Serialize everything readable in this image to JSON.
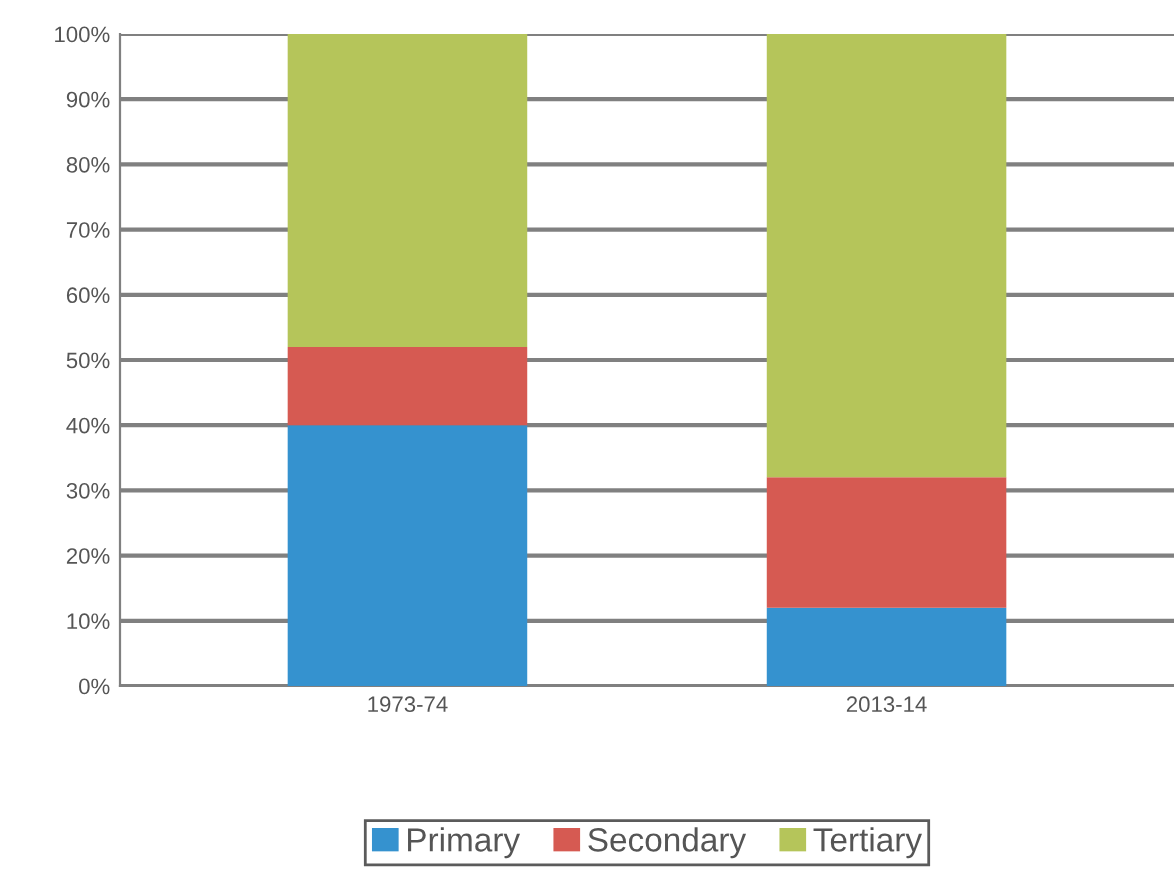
{
  "chart_data": {
    "type": "bar",
    "stacked": true,
    "categories": [
      "1973-74",
      "2013-14"
    ],
    "series": [
      {
        "name": "Primary",
        "color": "#3592cf",
        "values": [
          40,
          12
        ]
      },
      {
        "name": "Secondary",
        "color": "#d65a52",
        "values": [
          12,
          20
        ]
      },
      {
        "name": "Tertiary",
        "color": "#b5c55a",
        "values": [
          48,
          68
        ]
      }
    ],
    "ylim": [
      0,
      100
    ],
    "yticks": [
      {
        "value": 0,
        "label": "0%"
      },
      {
        "value": 10,
        "label": "10%"
      },
      {
        "value": 20,
        "label": "20%"
      },
      {
        "value": 30,
        "label": "30%"
      },
      {
        "value": 40,
        "label": "40%"
      },
      {
        "value": 50,
        "label": "50%"
      },
      {
        "value": 60,
        "label": "60%"
      },
      {
        "value": 70,
        "label": "70%"
      },
      {
        "value": 80,
        "label": "80%"
      },
      {
        "value": 90,
        "label": "90%"
      },
      {
        "value": 100,
        "label": "100%"
      }
    ],
    "grid": "y",
    "legend": "bottom"
  }
}
